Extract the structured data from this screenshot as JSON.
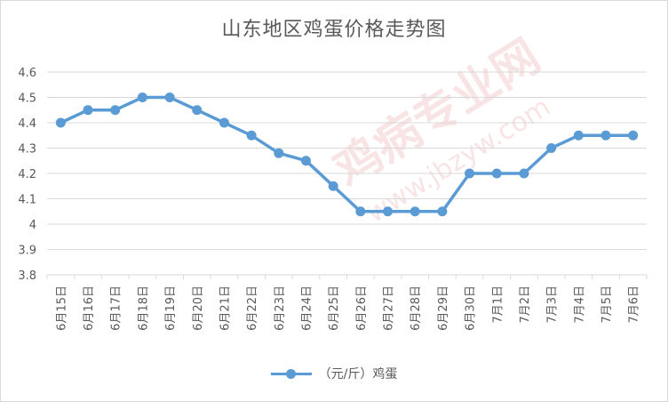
{
  "chart_data": {
    "type": "line",
    "title": "山东地区鸡蛋价格走势图",
    "categories": [
      "6月15日",
      "6月16日",
      "6月17日",
      "6月18日",
      "6月19日",
      "6月20日",
      "6月21日",
      "6月22日",
      "6月23日",
      "6月24日",
      "6月25日",
      "6月26日",
      "6月27日",
      "6月28日",
      "6月29日",
      "6月30日",
      "7月1日",
      "7月2日",
      "7月3日",
      "7月4日",
      "7月5日",
      "7月6日"
    ],
    "series": [
      {
        "name": "（元/斤）鸡蛋",
        "values": [
          4.4,
          4.45,
          4.45,
          4.5,
          4.5,
          4.45,
          4.4,
          4.35,
          4.28,
          4.25,
          4.15,
          4.05,
          4.05,
          4.05,
          4.05,
          4.2,
          4.2,
          4.2,
          4.3,
          4.35,
          4.35,
          4.35
        ],
        "color": "#5b9bd5"
      }
    ],
    "ylim": [
      3.8,
      4.6
    ],
    "yticks": [
      3.8,
      3.9,
      4,
      4.1,
      4.2,
      4.3,
      4.4,
      4.5,
      4.6
    ],
    "grid": true,
    "legend": "bottom-center"
  },
  "watermark": {
    "text": "鸡病专业网",
    "url": "www.jbzyw.com",
    "color": "#e8a0a0"
  },
  "colors": {
    "gridline": "#d9d9d9",
    "axis_text": "#595959",
    "series": "#5b9bd5"
  }
}
